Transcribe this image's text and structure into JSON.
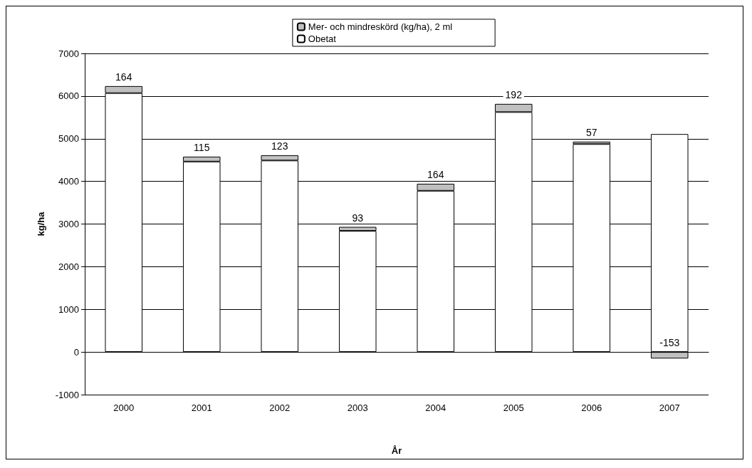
{
  "chart_data": {
    "type": "bar",
    "stacked": true,
    "xlabel": "År",
    "ylabel": "kg/ha",
    "categories": [
      "2000",
      "2001",
      "2002",
      "2003",
      "2004",
      "2005",
      "2006",
      "2007"
    ],
    "series": [
      {
        "name": "Obetat",
        "color": "#ffffff",
        "values": [
          6070,
          4465,
          4490,
          2840,
          3780,
          5625,
          4875,
          5110
        ]
      },
      {
        "name": "Mer- och mindreskörd (kg/ha), 2 ml",
        "color": "#c0c0c0",
        "values": [
          164,
          115,
          123,
          93,
          164,
          192,
          57,
          -153
        ],
        "value_labels": [
          "164",
          "115",
          "123",
          "93",
          "164",
          "192",
          "57",
          "-153"
        ]
      }
    ],
    "ylim": [
      -1000,
      7000
    ],
    "yticks": [
      -1000,
      0,
      1000,
      2000,
      3000,
      4000,
      5000,
      6000,
      7000
    ],
    "grid": "y",
    "legend": "top"
  }
}
